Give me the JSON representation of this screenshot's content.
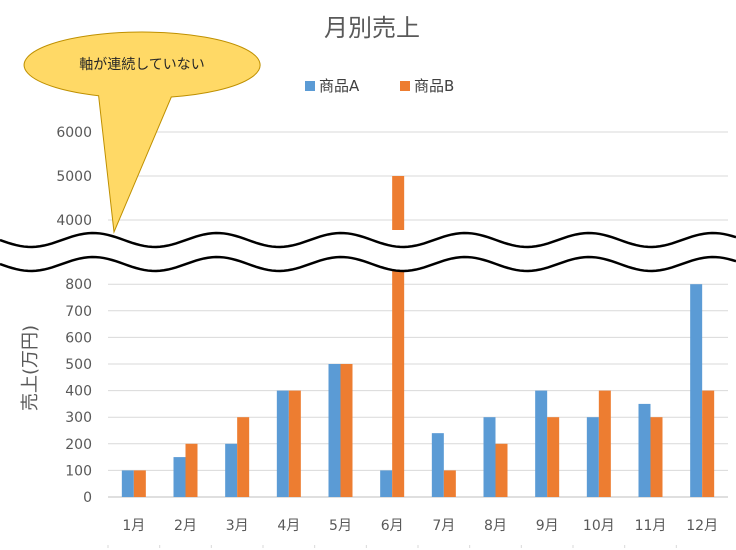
{
  "chart_data": {
    "type": "bar",
    "title": "月別売上",
    "xlabel": "",
    "ylabel": "売上(万円)",
    "categories": [
      "1月",
      "2月",
      "3月",
      "4月",
      "5月",
      "6月",
      "7月",
      "8月",
      "9月",
      "10月",
      "11月",
      "12月"
    ],
    "series": [
      {
        "name": "商品A",
        "color": "#5B9BD5",
        "values": [
          100,
          150,
          200,
          400,
          500,
          100,
          240,
          300,
          400,
          300,
          350,
          800
        ]
      },
      {
        "name": "商品B",
        "color": "#ED7D31",
        "values": [
          100,
          200,
          300,
          400,
          500,
          5000,
          100,
          200,
          300,
          400,
          300,
          400
        ]
      }
    ],
    "axis_break": true,
    "lower_ylim": [
      0,
      850
    ],
    "upper_ylim": [
      3750,
      6200
    ],
    "lower_ticks": [
      0,
      100,
      200,
      300,
      400,
      500,
      600,
      700,
      800
    ],
    "upper_ticks": [
      4000,
      5000,
      6000
    ],
    "grid": true,
    "legend_position": "top"
  },
  "callout": {
    "text": "軸が連続していない",
    "color": "#FFD966"
  }
}
